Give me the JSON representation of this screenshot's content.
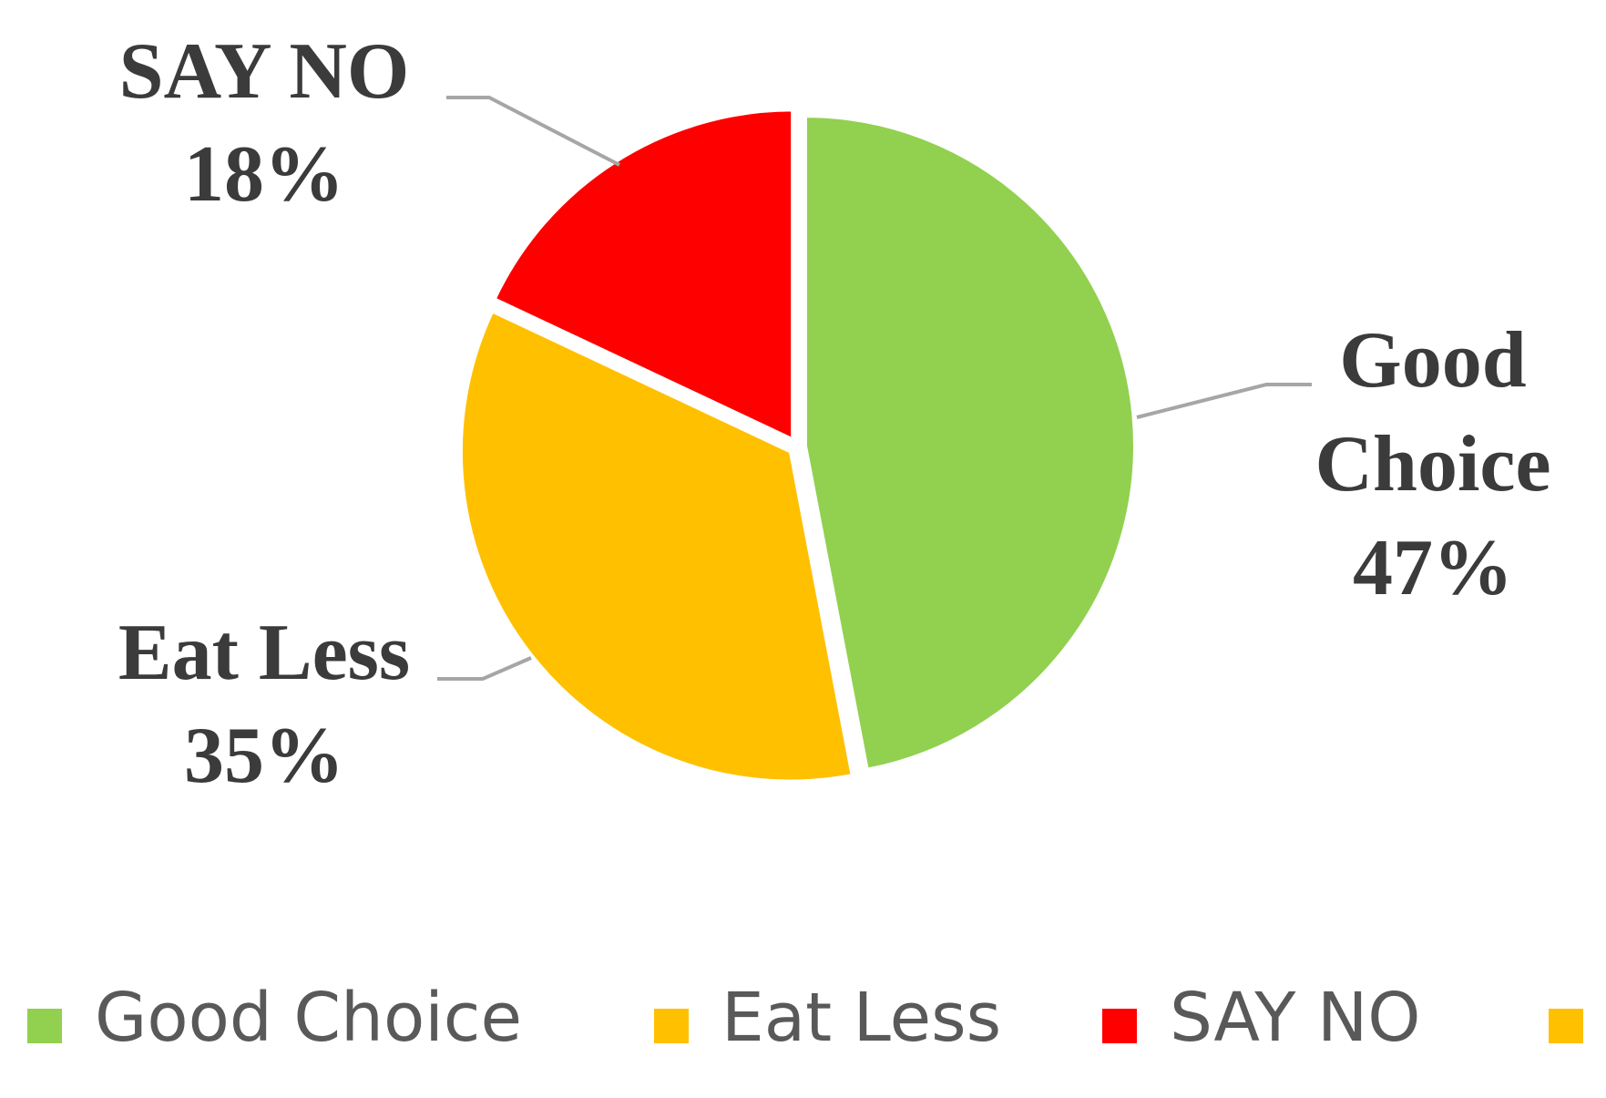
{
  "chart_data": {
    "type": "pie",
    "categories": [
      "Good Choice",
      "Eat Less",
      "SAY NO"
    ],
    "values": [
      47,
      35,
      18
    ],
    "unit": "%",
    "colors": [
      "#92d050",
      "#ffc000",
      "#ff0000"
    ],
    "data_labels": [
      {
        "lines": [
          "Good",
          "Choice",
          "47%"
        ]
      },
      {
        "lines": [
          "Eat Less",
          "35%"
        ]
      },
      {
        "lines": [
          "SAY NO",
          "18%"
        ]
      }
    ],
    "legend": {
      "position": "bottom",
      "entries": [
        {
          "label": "Good Choice",
          "color": "#92d050"
        },
        {
          "label": "Eat Less",
          "color": "#ffc000"
        },
        {
          "label": "SAY NO",
          "color": "#ff0000"
        },
        {
          "label": "",
          "color": "#ffc000"
        }
      ]
    },
    "leader_line_color": "#a6a6a6"
  }
}
